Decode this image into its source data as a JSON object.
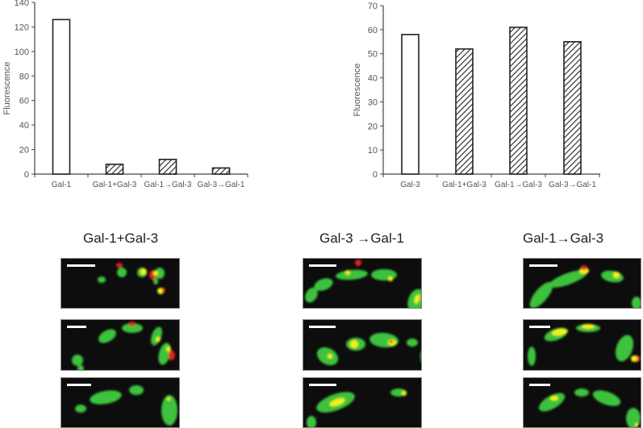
{
  "chart_data": [
    {
      "type": "bar",
      "title": "",
      "xlabel": "",
      "ylabel": "Fluorescence",
      "ylim": [
        0,
        140
      ],
      "yticks": [
        0,
        20,
        40,
        60,
        80,
        100,
        120,
        140
      ],
      "grid": false,
      "categories": [
        "Gal-1",
        "Gal-1+Gal-3",
        "Gal-1→Gal-3",
        "Gal-3→Gal-1"
      ],
      "values": [
        126,
        8,
        12,
        5
      ],
      "fills": [
        "open",
        "hatched",
        "hatched",
        "hatched"
      ]
    },
    {
      "type": "bar",
      "title": "",
      "xlabel": "",
      "ylabel": "Fluorescence",
      "ylim": [
        0,
        70
      ],
      "yticks": [
        0,
        10,
        20,
        30,
        40,
        50,
        60,
        70
      ],
      "grid": false,
      "categories": [
        "Gal-3",
        "Gal-1+Gal-3",
        "Gal-1→Gal-3",
        "Gal-3→Gal-1"
      ],
      "values": [
        58,
        52,
        61,
        55
      ],
      "fills": [
        "open",
        "hatched",
        "hatched",
        "hatched"
      ]
    }
  ],
  "micrographs": {
    "columns": [
      {
        "title": "Gal-1+Gal-3"
      },
      {
        "title": "Gal-3 →Gal-1"
      },
      {
        "title": "Gal-1→Gal-3"
      }
    ],
    "rows": 3,
    "colors": {
      "gal1": "#e02020",
      "gal3": "#3cc23c",
      "overlap": "#f2f21a",
      "background": "#0d0d0d"
    }
  }
}
